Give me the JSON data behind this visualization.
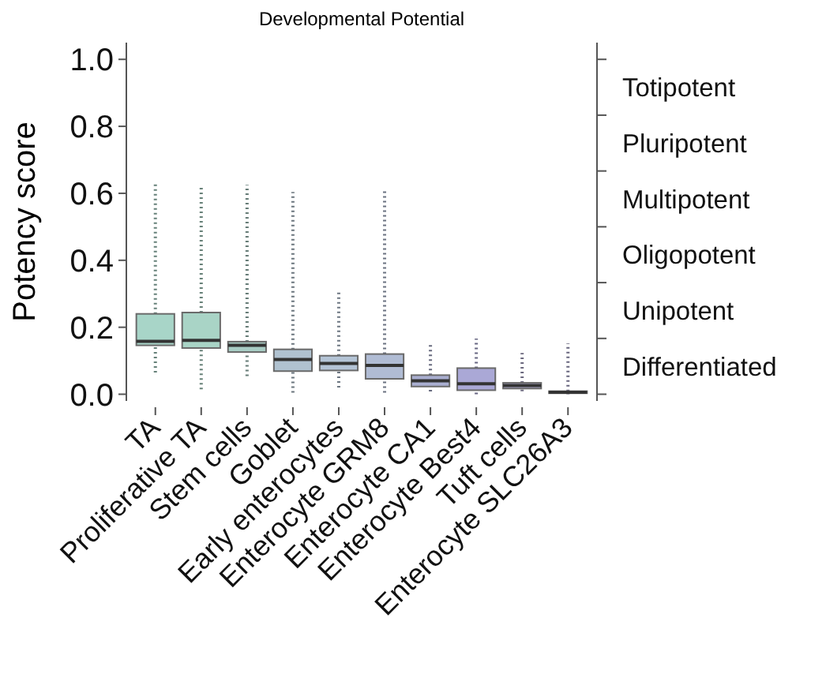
{
  "chart_data": {
    "type": "box",
    "title": "Developmental Potential",
    "ylabel": "Potency score",
    "categories": [
      "TA",
      "Proliferative TA",
      "Stem cells",
      "Goblet",
      "Early enterocytes",
      "Enterocyte GRM8",
      "Enterocyte CA1",
      "Enterocyte Best4",
      "Tuft cells",
      "Enterocyte SLC26A3"
    ],
    "colors": [
      "#a8d5c8",
      "#a9d4c6",
      "#a8ccc4",
      "#b0c2d0",
      "#b4c4d6",
      "#b0bcd4",
      "#a9aed0",
      "#aaa8d6",
      "#b0acd0",
      "#aaa6cf"
    ],
    "boxes": [
      {
        "low": 0.065,
        "q1": 0.146,
        "median": 0.158,
        "q3": 0.24,
        "high": 0.635
      },
      {
        "low": 0.015,
        "q1": 0.138,
        "median": 0.161,
        "q3": 0.244,
        "high": 0.622
      },
      {
        "low": 0.054,
        "q1": 0.126,
        "median": 0.146,
        "q3": 0.157,
        "high": 0.625
      },
      {
        "low": 0.005,
        "q1": 0.069,
        "median": 0.104,
        "q3": 0.134,
        "high": 0.604
      },
      {
        "low": 0.02,
        "q1": 0.071,
        "median": 0.092,
        "q3": 0.115,
        "high": 0.31
      },
      {
        "low": 0.005,
        "q1": 0.046,
        "median": 0.086,
        "q3": 0.12,
        "high": 0.607
      },
      {
        "low": 0.008,
        "q1": 0.023,
        "median": 0.04,
        "q3": 0.057,
        "high": 0.15
      },
      {
        "low": 0,
        "q1": 0.012,
        "median": 0.031,
        "q3": 0.078,
        "high": 0.166
      },
      {
        "low": 0.009,
        "q1": 0.017,
        "median": 0.026,
        "q3": 0.034,
        "high": 0.123
      },
      {
        "low": 0,
        "q1": 0.003,
        "median": 0.006,
        "q3": 0.009,
        "high": 0.152
      }
    ],
    "ylim": [
      -0.02,
      1.05
    ],
    "yticks": [
      {
        "value": 0,
        "label": "0.0"
      },
      {
        "value": 0.2,
        "label": "0.2"
      },
      {
        "value": 0.4,
        "label": "0.4"
      },
      {
        "value": 0.6,
        "label": "0.6"
      },
      {
        "value": 0.8,
        "label": "0.8"
      },
      {
        "value": 1,
        "label": "1.0"
      }
    ],
    "annotations": [
      "Differentiated",
      "Unipotent",
      "Oligopotent",
      "Multipotent",
      "Pluripotent",
      "Totipotent"
    ]
  }
}
